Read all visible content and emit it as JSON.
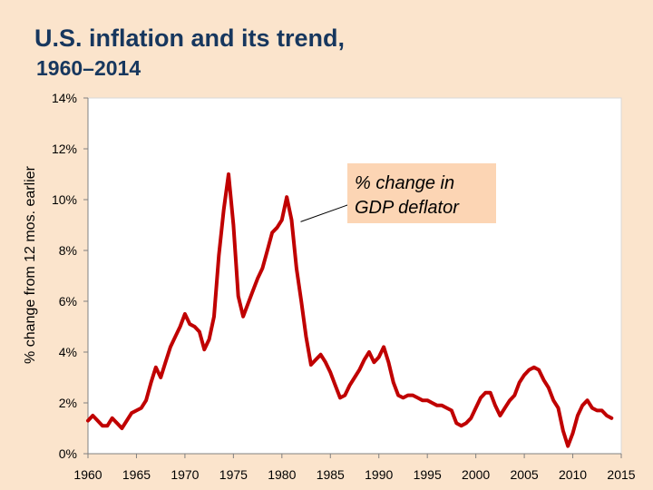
{
  "chart_data": {
    "type": "line",
    "title": "U.S. inflation and its trend,",
    "subtitle": "1960–2014",
    "xlabel": "",
    "ylabel": "% change from 12 mos. earlier",
    "xlim": [
      1960,
      2015
    ],
    "ylim": [
      0,
      14
    ],
    "x_ticks": [
      "1960",
      "1965",
      "1970",
      "1975",
      "1980",
      "1985",
      "1990",
      "1995",
      "2000",
      "2005",
      "2010",
      "2015"
    ],
    "y_ticks": [
      "0%",
      "2%",
      "4%",
      "6%",
      "8%",
      "10%",
      "12%",
      "14%"
    ],
    "grid": false,
    "line_color": "#c00000",
    "annotation": {
      "text_line1": "% change in",
      "text_line2": "GDP deflator",
      "fill": "#fcd5b4",
      "points_to": [
        1981,
        9.2
      ]
    },
    "series": [
      {
        "name": "% change in GDP deflator",
        "x": [
          1960.0,
          1960.5,
          1961.0,
          1961.5,
          1962.0,
          1962.5,
          1963.0,
          1963.5,
          1964.0,
          1964.5,
          1965.0,
          1965.5,
          1966.0,
          1966.5,
          1967.0,
          1967.5,
          1968.0,
          1968.5,
          1969.0,
          1969.5,
          1970.0,
          1970.5,
          1971.0,
          1971.5,
          1972.0,
          1972.5,
          1973.0,
          1973.5,
          1974.0,
          1974.5,
          1975.0,
          1975.5,
          1976.0,
          1976.5,
          1977.0,
          1977.5,
          1978.0,
          1978.5,
          1979.0,
          1979.5,
          1980.0,
          1980.5,
          1981.0,
          1981.5,
          1982.0,
          1982.5,
          1983.0,
          1983.5,
          1984.0,
          1984.5,
          1985.0,
          1985.5,
          1986.0,
          1986.5,
          1987.0,
          1987.5,
          1988.0,
          1988.5,
          1989.0,
          1989.5,
          1990.0,
          1990.5,
          1991.0,
          1991.5,
          1992.0,
          1992.5,
          1993.0,
          1993.5,
          1994.0,
          1994.5,
          1995.0,
          1995.5,
          1996.0,
          1996.5,
          1997.0,
          1997.5,
          1998.0,
          1998.5,
          1999.0,
          1999.5,
          2000.0,
          2000.5,
          2001.0,
          2001.5,
          2002.0,
          2002.5,
          2003.0,
          2003.5,
          2004.0,
          2004.5,
          2005.0,
          2005.5,
          2006.0,
          2006.5,
          2007.0,
          2007.5,
          2008.0,
          2008.5,
          2009.0,
          2009.5,
          2010.0,
          2010.5,
          2011.0,
          2011.5,
          2012.0,
          2012.5,
          2013.0,
          2013.5,
          2014.0
        ],
        "values": [
          1.3,
          1.5,
          1.3,
          1.1,
          1.1,
          1.4,
          1.2,
          1.0,
          1.3,
          1.6,
          1.7,
          1.8,
          2.1,
          2.8,
          3.4,
          3.0,
          3.6,
          4.2,
          4.6,
          5.0,
          5.5,
          5.1,
          5.0,
          4.8,
          4.1,
          4.5,
          5.4,
          7.8,
          9.6,
          11.0,
          9.0,
          6.2,
          5.4,
          5.9,
          6.4,
          6.9,
          7.3,
          8.0,
          8.7,
          8.9,
          9.2,
          10.1,
          9.2,
          7.3,
          6.0,
          4.6,
          3.5,
          3.7,
          3.9,
          3.6,
          3.2,
          2.7,
          2.2,
          2.3,
          2.7,
          3.0,
          3.3,
          3.7,
          4.0,
          3.6,
          3.8,
          4.2,
          3.6,
          2.8,
          2.3,
          2.2,
          2.3,
          2.3,
          2.2,
          2.1,
          2.1,
          2.0,
          1.9,
          1.9,
          1.8,
          1.7,
          1.2,
          1.1,
          1.2,
          1.4,
          1.8,
          2.2,
          2.4,
          2.4,
          1.9,
          1.5,
          1.8,
          2.1,
          2.3,
          2.8,
          3.1,
          3.3,
          3.4,
          3.3,
          2.9,
          2.6,
          2.1,
          1.8,
          0.9,
          0.3,
          0.8,
          1.5,
          1.9,
          2.1,
          1.8,
          1.7,
          1.7,
          1.5,
          1.4
        ]
      }
    ]
  }
}
